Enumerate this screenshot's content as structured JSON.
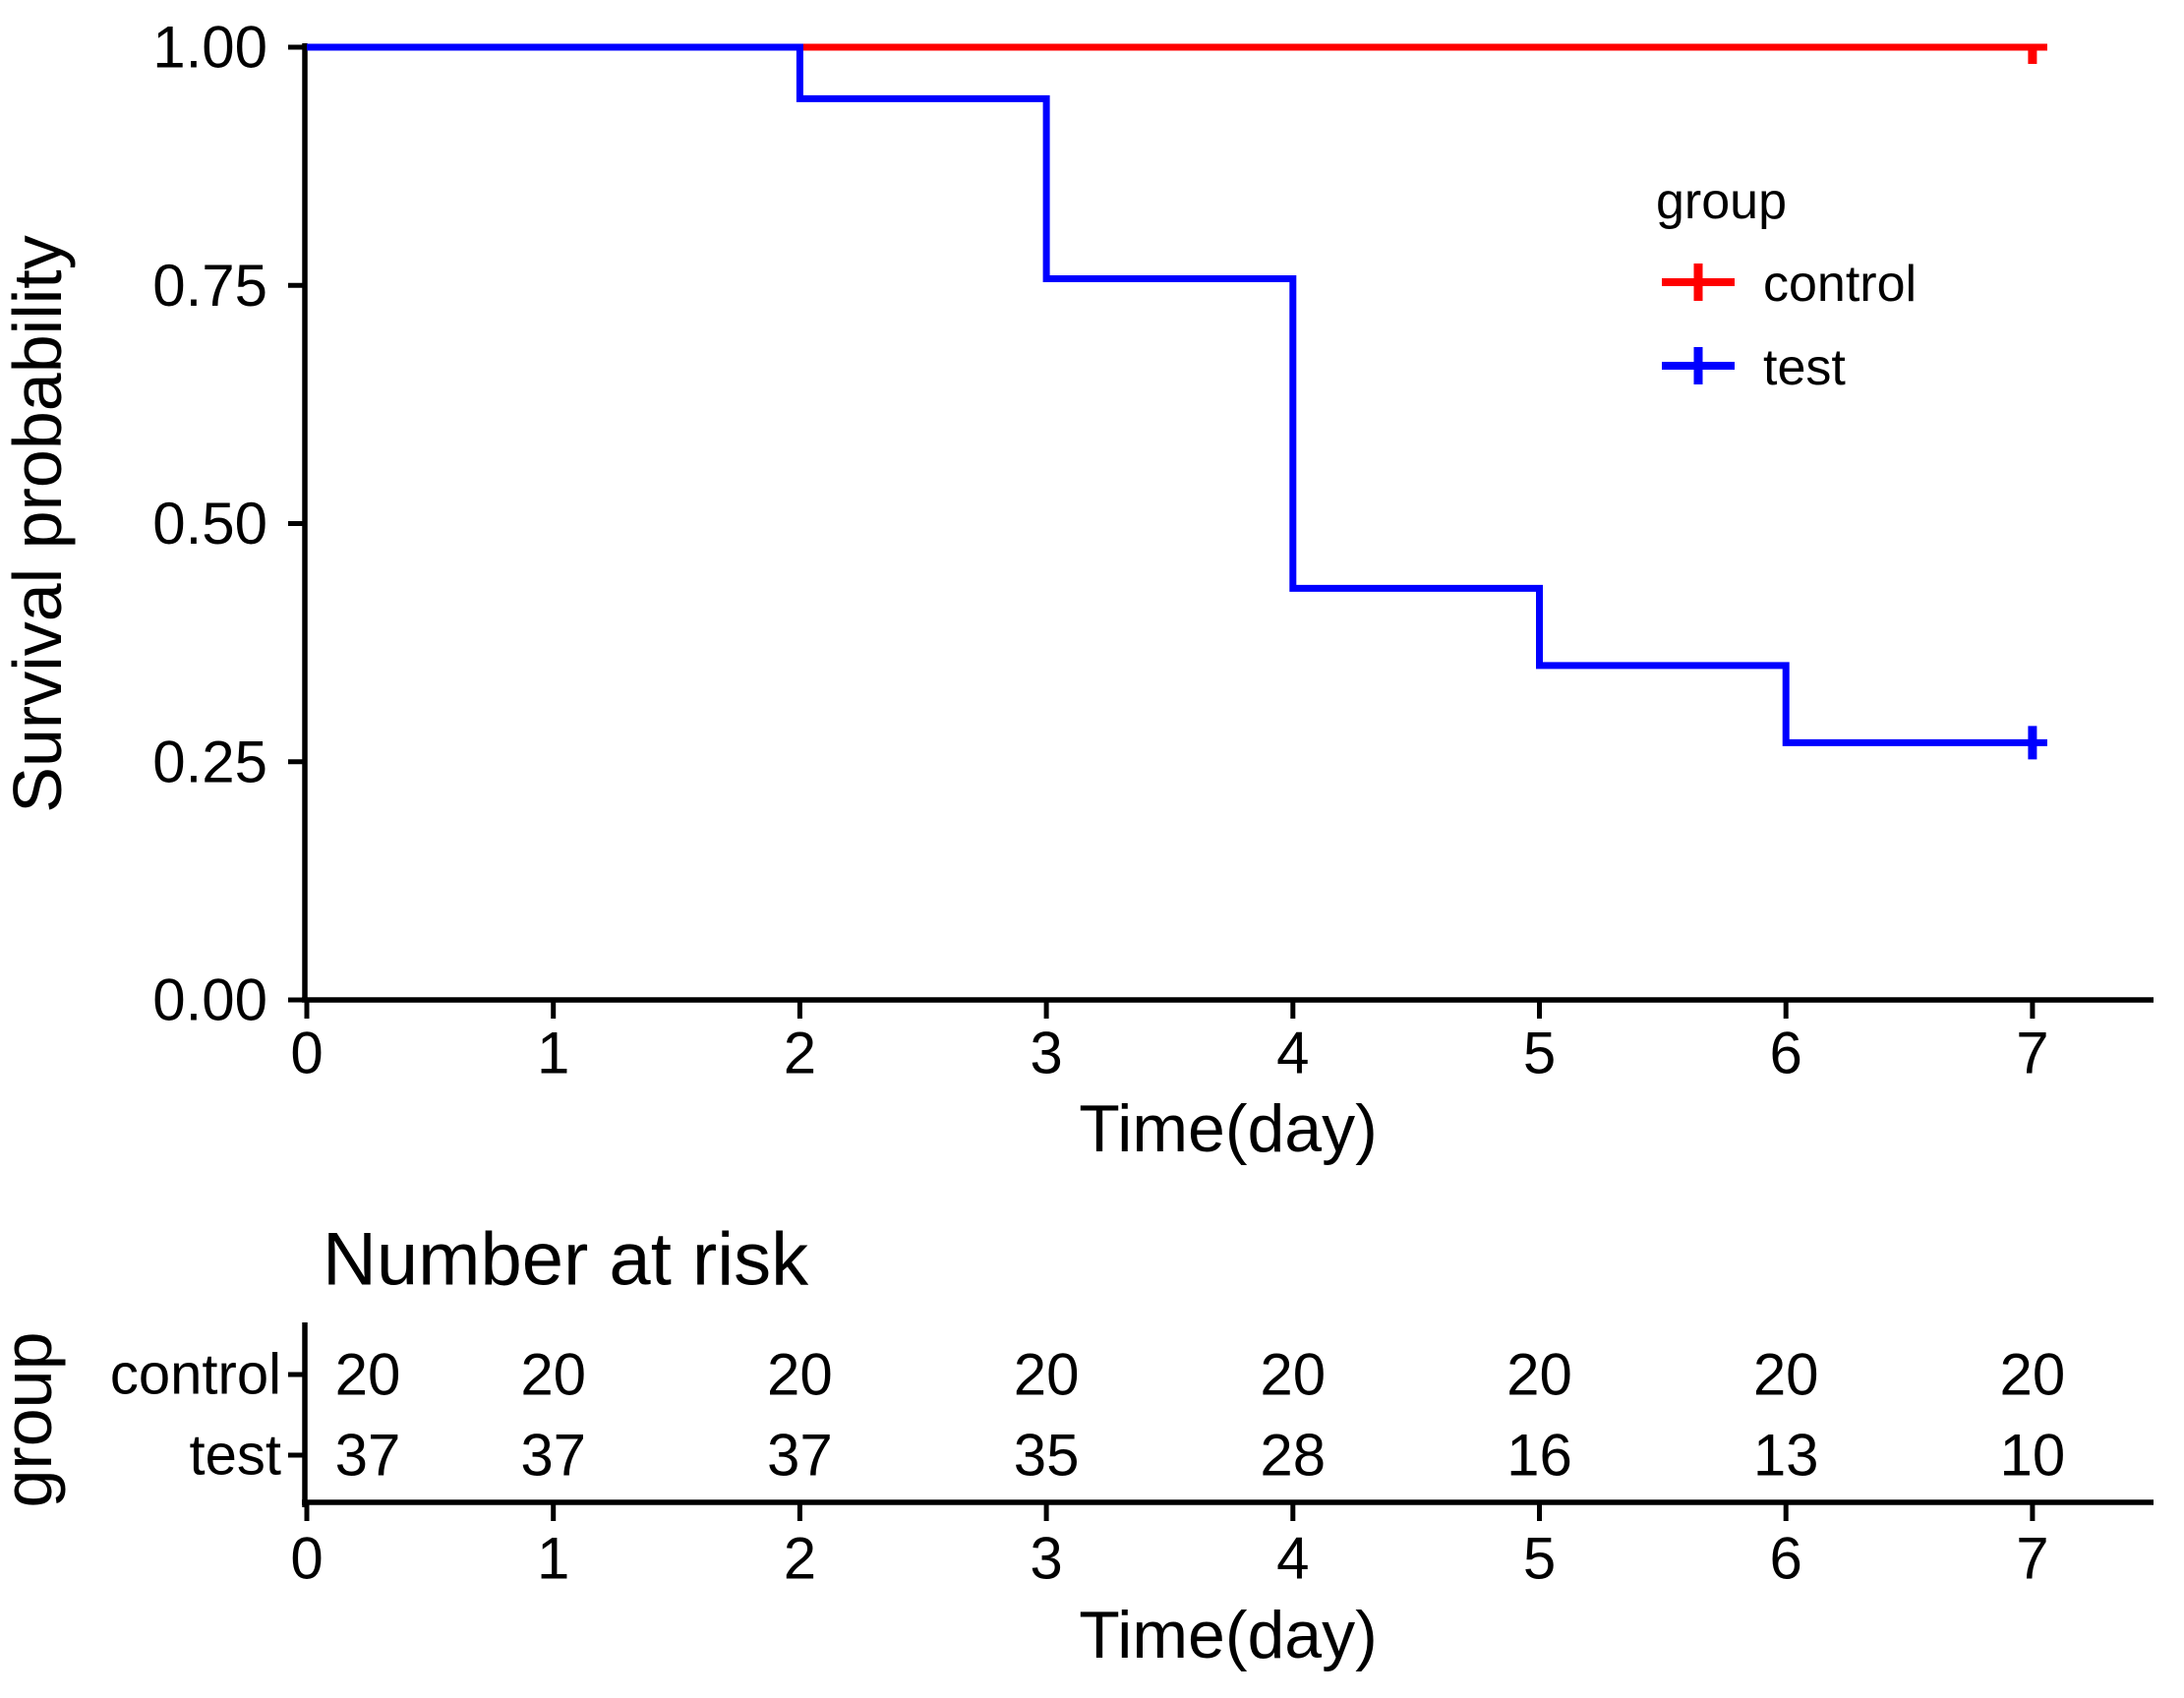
{
  "figure": {
    "background": "#ffffff",
    "axis_color": "#000000",
    "control_color": "#FF0000",
    "test_color": "#0000FF"
  },
  "main_plot": {
    "y_label": "Survival probability",
    "x_label": "Time(day)",
    "y_ticks": [
      "1.00",
      "0.75",
      "0.50",
      "0.25",
      "0.00"
    ],
    "x_ticks": [
      "0",
      "1",
      "2",
      "3",
      "4",
      "5",
      "6",
      "7"
    ]
  },
  "legend": {
    "title": "group",
    "entries": [
      {
        "label": "control",
        "color": "#FF0000"
      },
      {
        "label": "test",
        "color": "#0000FF"
      }
    ]
  },
  "risk_table": {
    "title": "Number at risk",
    "y_label": "group",
    "x_label": "Time(day)",
    "x_ticks": [
      "0",
      "1",
      "2",
      "3",
      "4",
      "5",
      "6",
      "7"
    ],
    "rows": [
      {
        "label": "control",
        "color": "#FF0000",
        "values": [
          "20",
          "20",
          "20",
          "20",
          "20",
          "20",
          "20",
          "20"
        ]
      },
      {
        "label": "test",
        "color": "#0000FF",
        "values": [
          "37",
          "37",
          "37",
          "35",
          "28",
          "16",
          "13",
          "10"
        ]
      }
    ]
  },
  "chart_data": {
    "type": "line",
    "subtype": "kaplan-meier-step",
    "title": "",
    "xlabel": "Time(day)",
    "ylabel": "Survival probability",
    "xlim": [
      0,
      7.4
    ],
    "ylim": [
      0,
      1
    ],
    "x_ticks": [
      0,
      1,
      2,
      3,
      4,
      5,
      6,
      7
    ],
    "y_ticks": [
      0,
      0.25,
      0.5,
      0.75,
      1
    ],
    "grid": false,
    "legend_title": "group",
    "legend_position": "inside-top-right",
    "series": [
      {
        "name": "control",
        "color": "#FF0000",
        "step_points": [
          [
            0,
            1.0
          ],
          [
            7.06,
            1.0
          ]
        ],
        "censored": [
          [
            7,
            1.0
          ]
        ]
      },
      {
        "name": "test",
        "color": "#0000FF",
        "step_points": [
          [
            0,
            1.0
          ],
          [
            2,
            0.946
          ],
          [
            3,
            0.757
          ],
          [
            4,
            0.432
          ],
          [
            5,
            0.351
          ],
          [
            6,
            0.27
          ],
          [
            7.06,
            0.27
          ]
        ],
        "censored": [
          [
            7,
            0.27
          ]
        ]
      }
    ],
    "number_at_risk": {
      "title": "Number at risk",
      "group_axis_label": "group",
      "times": [
        0,
        1,
        2,
        3,
        4,
        5,
        6,
        7
      ],
      "rows": [
        {
          "group": "control",
          "color": "#FF0000",
          "counts": [
            20,
            20,
            20,
            20,
            20,
            20,
            20,
            20
          ]
        },
        {
          "group": "test",
          "color": "#0000FF",
          "counts": [
            37,
            37,
            37,
            35,
            28,
            16,
            13,
            10
          ]
        }
      ]
    }
  }
}
